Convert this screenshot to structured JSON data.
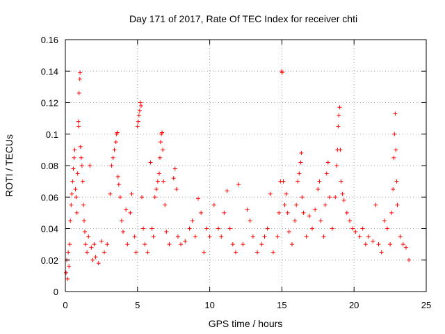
{
  "chart_data": {
    "type": "scatter",
    "title": "Day 171 of 2017, Rate Of TEC Index for receiver chti",
    "xlabel": "GPS time / hours",
    "ylabel": "ROTI / TECUs",
    "xlim": [
      0,
      25
    ],
    "ylim": [
      0,
      0.16
    ],
    "xticks": [
      0,
      5,
      10,
      15,
      20,
      25
    ],
    "yticks": [
      0,
      0.02,
      0.04,
      0.06,
      0.08,
      0.1,
      0.12,
      0.14,
      0.16
    ],
    "xtick_labels": [
      "0",
      "5",
      "10",
      "15",
      "20",
      "25"
    ],
    "ytick_labels": [
      "0",
      "0.02",
      "0.04",
      "0.06",
      "0.08",
      "0.1",
      "0.12",
      "0.14",
      "0.16"
    ],
    "marker": "+",
    "marker_color": "#ff0000",
    "grid": true,
    "series": [
      {
        "name": "ROTI",
        "points": [
          [
            0.05,
            0.012
          ],
          [
            0.1,
            0.02
          ],
          [
            0.15,
            0.008
          ],
          [
            0.2,
            0.025
          ],
          [
            0.25,
            0.016
          ],
          [
            0.3,
            0.03
          ],
          [
            0.35,
            0.045
          ],
          [
            0.4,
            0.055
          ],
          [
            0.45,
            0.062
          ],
          [
            0.5,
            0.07
          ],
          [
            0.55,
            0.078
          ],
          [
            0.6,
            0.085
          ],
          [
            0.65,
            0.09
          ],
          [
            0.7,
            0.065
          ],
          [
            0.75,
            0.06
          ],
          [
            0.8,
            0.05
          ],
          [
            0.85,
            0.075
          ],
          [
            0.9,
            0.108
          ],
          [
            0.92,
            0.105
          ],
          [
            0.95,
            0.126
          ],
          [
            1.0,
            0.135
          ],
          [
            1.02,
            0.139
          ],
          [
            1.05,
            0.092
          ],
          [
            1.1,
            0.085
          ],
          [
            1.15,
            0.08
          ],
          [
            1.2,
            0.07
          ],
          [
            1.25,
            0.055
          ],
          [
            1.3,
            0.045
          ],
          [
            1.35,
            0.038
          ],
          [
            1.4,
            0.03
          ],
          [
            1.5,
            0.025
          ],
          [
            1.6,
            0.035
          ],
          [
            1.7,
            0.08
          ],
          [
            1.8,
            0.028
          ],
          [
            1.9,
            0.02
          ],
          [
            2.0,
            0.03
          ],
          [
            2.1,
            0.022
          ],
          [
            2.3,
            0.018
          ],
          [
            2.5,
            0.032
          ],
          [
            2.7,
            0.025
          ],
          [
            2.9,
            0.03
          ],
          [
            3.1,
            0.062
          ],
          [
            3.2,
            0.08
          ],
          [
            3.3,
            0.085
          ],
          [
            3.4,
            0.09
          ],
          [
            3.5,
            0.095
          ],
          [
            3.55,
            0.1
          ],
          [
            3.6,
            0.101
          ],
          [
            3.65,
            0.073
          ],
          [
            3.7,
            0.068
          ],
          [
            3.8,
            0.06
          ],
          [
            3.9,
            0.045
          ],
          [
            4.0,
            0.038
          ],
          [
            4.2,
            0.052
          ],
          [
            4.3,
            0.03
          ],
          [
            4.5,
            0.05
          ],
          [
            4.6,
            0.062
          ],
          [
            4.8,
            0.035
          ],
          [
            4.9,
            0.025
          ],
          [
            5.0,
            0.105
          ],
          [
            5.05,
            0.108
          ],
          [
            5.1,
            0.112
          ],
          [
            5.15,
            0.115
          ],
          [
            5.2,
            0.12
          ],
          [
            5.25,
            0.118
          ],
          [
            5.3,
            0.06
          ],
          [
            5.4,
            0.04
          ],
          [
            5.5,
            0.03
          ],
          [
            5.7,
            0.025
          ],
          [
            5.9,
            0.082
          ],
          [
            6.0,
            0.04
          ],
          [
            6.1,
            0.035
          ],
          [
            6.2,
            0.06
          ],
          [
            6.3,
            0.065
          ],
          [
            6.4,
            0.07
          ],
          [
            6.5,
            0.075
          ],
          [
            6.55,
            0.085
          ],
          [
            6.6,
            0.095
          ],
          [
            6.65,
            0.1
          ],
          [
            6.7,
            0.101
          ],
          [
            6.75,
            0.09
          ],
          [
            6.8,
            0.07
          ],
          [
            6.9,
            0.055
          ],
          [
            7.0,
            0.038
          ],
          [
            7.2,
            0.03
          ],
          [
            7.5,
            0.072
          ],
          [
            7.6,
            0.078
          ],
          [
            7.7,
            0.065
          ],
          [
            7.8,
            0.035
          ],
          [
            8.0,
            0.03
          ],
          [
            8.3,
            0.032
          ],
          [
            8.6,
            0.04
          ],
          [
            8.8,
            0.045
          ],
          [
            9.0,
            0.035
          ],
          [
            9.2,
            0.059
          ],
          [
            9.4,
            0.05
          ],
          [
            9.6,
            0.025
          ],
          [
            9.8,
            0.04
          ],
          [
            10.0,
            0.035
          ],
          [
            10.3,
            0.055
          ],
          [
            10.6,
            0.04
          ],
          [
            10.8,
            0.035
          ],
          [
            11.0,
            0.05
          ],
          [
            11.2,
            0.064
          ],
          [
            11.4,
            0.04
          ],
          [
            11.6,
            0.03
          ],
          [
            11.8,
            0.025
          ],
          [
            12.0,
            0.068
          ],
          [
            12.3,
            0.03
          ],
          [
            12.6,
            0.052
          ],
          [
            12.8,
            0.045
          ],
          [
            13.0,
            0.035
          ],
          [
            13.3,
            0.025
          ],
          [
            13.6,
            0.03
          ],
          [
            13.8,
            0.035
          ],
          [
            14.0,
            0.04
          ],
          [
            14.2,
            0.062
          ],
          [
            14.4,
            0.025
          ],
          [
            14.7,
            0.035
          ],
          [
            14.8,
            0.05
          ],
          [
            14.9,
            0.07
          ],
          [
            15.0,
            0.14
          ],
          [
            15.02,
            0.139
          ],
          [
            15.1,
            0.07
          ],
          [
            15.2,
            0.055
          ],
          [
            15.3,
            0.062
          ],
          [
            15.4,
            0.05
          ],
          [
            15.5,
            0.038
          ],
          [
            15.7,
            0.03
          ],
          [
            15.9,
            0.045
          ],
          [
            16.0,
            0.055
          ],
          [
            16.1,
            0.07
          ],
          [
            16.2,
            0.075
          ],
          [
            16.3,
            0.082
          ],
          [
            16.35,
            0.088
          ],
          [
            16.4,
            0.06
          ],
          [
            16.5,
            0.05
          ],
          [
            16.7,
            0.035
          ],
          [
            16.9,
            0.048
          ],
          [
            17.1,
            0.04
          ],
          [
            17.3,
            0.052
          ],
          [
            17.5,
            0.065
          ],
          [
            17.6,
            0.07
          ],
          [
            17.7,
            0.045
          ],
          [
            17.9,
            0.035
          ],
          [
            18.0,
            0.055
          ],
          [
            18.1,
            0.075
          ],
          [
            18.2,
            0.082
          ],
          [
            18.3,
            0.06
          ],
          [
            18.5,
            0.04
          ],
          [
            18.7,
            0.06
          ],
          [
            18.8,
            0.08
          ],
          [
            18.85,
            0.09
          ],
          [
            18.9,
            0.105
          ],
          [
            18.95,
            0.112
          ],
          [
            19.0,
            0.117
          ],
          [
            19.05,
            0.09
          ],
          [
            19.1,
            0.07
          ],
          [
            19.2,
            0.062
          ],
          [
            19.3,
            0.058
          ],
          [
            19.5,
            0.05
          ],
          [
            19.7,
            0.045
          ],
          [
            19.9,
            0.04
          ],
          [
            20.1,
            0.038
          ],
          [
            20.4,
            0.035
          ],
          [
            20.6,
            0.04
          ],
          [
            20.8,
            0.03
          ],
          [
            21.0,
            0.035
          ],
          [
            21.3,
            0.032
          ],
          [
            21.5,
            0.055
          ],
          [
            21.7,
            0.03
          ],
          [
            21.9,
            0.025
          ],
          [
            22.1,
            0.045
          ],
          [
            22.3,
            0.04
          ],
          [
            22.5,
            0.03
          ],
          [
            22.6,
            0.05
          ],
          [
            22.7,
            0.065
          ],
          [
            22.75,
            0.085
          ],
          [
            22.8,
            0.1
          ],
          [
            22.85,
            0.113
          ],
          [
            22.9,
            0.09
          ],
          [
            22.95,
            0.07
          ],
          [
            23.0,
            0.055
          ],
          [
            23.2,
            0.035
          ],
          [
            23.4,
            0.03
          ],
          [
            23.6,
            0.028
          ],
          [
            23.8,
            0.02
          ]
        ]
      }
    ]
  }
}
